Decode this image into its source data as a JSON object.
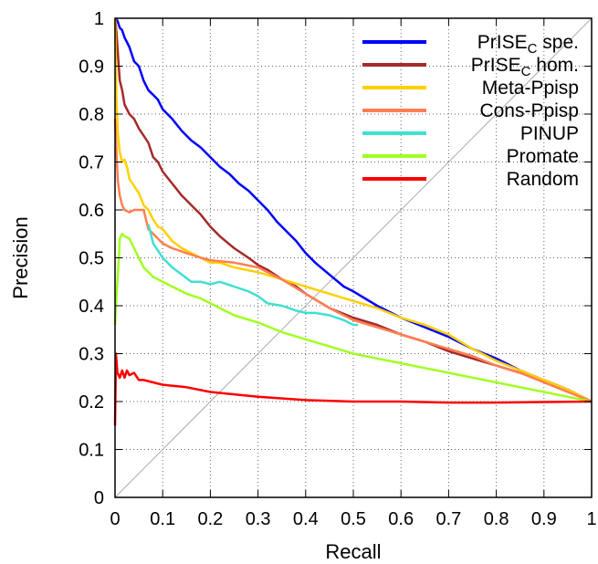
{
  "chart_data": {
    "type": "line",
    "xlabel": "Recall",
    "ylabel": "Precision",
    "xlim": [
      0,
      1
    ],
    "ylim": [
      0,
      1
    ],
    "xticks": [
      "0",
      "0.1",
      "0.2",
      "0.3",
      "0.4",
      "0.5",
      "0.6",
      "0.7",
      "0.8",
      "0.9",
      "1"
    ],
    "yticks": [
      "0",
      "0.1",
      "0.2",
      "0.3",
      "0.4",
      "0.5",
      "0.6",
      "0.7",
      "0.8",
      "0.9",
      "1"
    ],
    "grid": true,
    "legend_position": "top-right",
    "diagonal_reference": true,
    "series": [
      {
        "name": "PrISE",
        "name_sub": "C",
        "name_suffix": " spe.",
        "color": "#0000ff",
        "points": [
          [
            0,
            1.0
          ],
          [
            0.005,
            0.995
          ],
          [
            0.01,
            0.98
          ],
          [
            0.015,
            0.975
          ],
          [
            0.02,
            0.96
          ],
          [
            0.03,
            0.94
          ],
          [
            0.04,
            0.91
          ],
          [
            0.05,
            0.9
          ],
          [
            0.06,
            0.87
          ],
          [
            0.07,
            0.85
          ],
          [
            0.08,
            0.84
          ],
          [
            0.09,
            0.83
          ],
          [
            0.1,
            0.81
          ],
          [
            0.12,
            0.79
          ],
          [
            0.14,
            0.765
          ],
          [
            0.16,
            0.745
          ],
          [
            0.18,
            0.73
          ],
          [
            0.2,
            0.71
          ],
          [
            0.22,
            0.69
          ],
          [
            0.24,
            0.675
          ],
          [
            0.26,
            0.655
          ],
          [
            0.28,
            0.64
          ],
          [
            0.3,
            0.62
          ],
          [
            0.32,
            0.6
          ],
          [
            0.34,
            0.575
          ],
          [
            0.36,
            0.555
          ],
          [
            0.38,
            0.535
          ],
          [
            0.4,
            0.51
          ],
          [
            0.42,
            0.49
          ],
          [
            0.45,
            0.465
          ],
          [
            0.48,
            0.44
          ],
          [
            0.5,
            0.43
          ],
          [
            0.55,
            0.4
          ],
          [
            0.6,
            0.375
          ],
          [
            0.65,
            0.355
          ],
          [
            0.7,
            0.335
          ],
          [
            0.75,
            0.31
          ],
          [
            0.8,
            0.29
          ],
          [
            0.85,
            0.265
          ],
          [
            0.9,
            0.245
          ],
          [
            0.95,
            0.225
          ],
          [
            1.0,
            0.2
          ]
        ]
      },
      {
        "name": "PrISE",
        "name_sub": "C",
        "name_suffix": " hom.",
        "color": "#a52a2a",
        "points": [
          [
            0,
            1.0
          ],
          [
            0.003,
            0.97
          ],
          [
            0.007,
            0.91
          ],
          [
            0.01,
            0.87
          ],
          [
            0.015,
            0.85
          ],
          [
            0.02,
            0.82
          ],
          [
            0.03,
            0.8
          ],
          [
            0.04,
            0.79
          ],
          [
            0.05,
            0.77
          ],
          [
            0.06,
            0.755
          ],
          [
            0.07,
            0.74
          ],
          [
            0.08,
            0.71
          ],
          [
            0.09,
            0.7
          ],
          [
            0.1,
            0.68
          ],
          [
            0.12,
            0.655
          ],
          [
            0.14,
            0.63
          ],
          [
            0.16,
            0.61
          ],
          [
            0.18,
            0.59
          ],
          [
            0.2,
            0.565
          ],
          [
            0.22,
            0.545
          ],
          [
            0.25,
            0.52
          ],
          [
            0.28,
            0.5
          ],
          [
            0.3,
            0.485
          ],
          [
            0.32,
            0.475
          ],
          [
            0.35,
            0.455
          ],
          [
            0.38,
            0.44
          ],
          [
            0.4,
            0.425
          ],
          [
            0.45,
            0.395
          ],
          [
            0.5,
            0.375
          ],
          [
            0.55,
            0.36
          ],
          [
            0.6,
            0.34
          ],
          [
            0.65,
            0.325
          ],
          [
            0.7,
            0.305
          ],
          [
            0.75,
            0.29
          ],
          [
            0.8,
            0.275
          ],
          [
            0.85,
            0.26
          ],
          [
            0.9,
            0.245
          ],
          [
            0.95,
            0.225
          ],
          [
            1.0,
            0.2
          ]
        ]
      },
      {
        "name": "Meta-Ppisp",
        "color": "#ffd000",
        "points": [
          [
            0,
            1.0
          ],
          [
            0.003,
            0.83
          ],
          [
            0.006,
            0.76
          ],
          [
            0.01,
            0.72
          ],
          [
            0.015,
            0.7
          ],
          [
            0.02,
            0.705
          ],
          [
            0.025,
            0.69
          ],
          [
            0.03,
            0.665
          ],
          [
            0.04,
            0.65
          ],
          [
            0.05,
            0.635
          ],
          [
            0.06,
            0.61
          ],
          [
            0.07,
            0.6
          ],
          [
            0.08,
            0.58
          ],
          [
            0.09,
            0.565
          ],
          [
            0.1,
            0.56
          ],
          [
            0.12,
            0.535
          ],
          [
            0.14,
            0.52
          ],
          [
            0.16,
            0.51
          ],
          [
            0.18,
            0.5
          ],
          [
            0.2,
            0.49
          ],
          [
            0.22,
            0.49
          ],
          [
            0.25,
            0.48
          ],
          [
            0.3,
            0.47
          ],
          [
            0.35,
            0.455
          ],
          [
            0.4,
            0.44
          ],
          [
            0.45,
            0.425
          ],
          [
            0.5,
            0.41
          ],
          [
            0.55,
            0.395
          ],
          [
            0.6,
            0.375
          ],
          [
            0.65,
            0.36
          ],
          [
            0.7,
            0.34
          ],
          [
            0.75,
            0.31
          ],
          [
            0.8,
            0.285
          ],
          [
            0.85,
            0.265
          ],
          [
            0.9,
            0.245
          ],
          [
            0.95,
            0.225
          ],
          [
            1.0,
            0.2
          ]
        ]
      },
      {
        "name": "Cons-Ppisp",
        "color": "#ff7f50",
        "points": [
          [
            0,
            0.79
          ],
          [
            0.003,
            0.72
          ],
          [
            0.006,
            0.66
          ],
          [
            0.01,
            0.63
          ],
          [
            0.015,
            0.61
          ],
          [
            0.02,
            0.6
          ],
          [
            0.03,
            0.595
          ],
          [
            0.04,
            0.6
          ],
          [
            0.05,
            0.6
          ],
          [
            0.06,
            0.6
          ],
          [
            0.07,
            0.56
          ],
          [
            0.08,
            0.55
          ],
          [
            0.09,
            0.54
          ],
          [
            0.1,
            0.53
          ],
          [
            0.12,
            0.52
          ],
          [
            0.15,
            0.51
          ],
          [
            0.18,
            0.5
          ],
          [
            0.2,
            0.495
          ],
          [
            0.25,
            0.49
          ],
          [
            0.3,
            0.48
          ],
          [
            0.35,
            0.455
          ],
          [
            0.4,
            0.425
          ],
          [
            0.45,
            0.395
          ],
          [
            0.5,
            0.37
          ],
          [
            0.55,
            0.355
          ],
          [
            0.6,
            0.34
          ],
          [
            0.65,
            0.325
          ],
          [
            0.7,
            0.31
          ],
          [
            0.75,
            0.295
          ],
          [
            0.8,
            0.275
          ],
          [
            0.85,
            0.26
          ],
          [
            0.9,
            0.24
          ],
          [
            0.95,
            0.22
          ],
          [
            1.0,
            0.2
          ]
        ]
      },
      {
        "name": "PINUP",
        "color": "#40e0d0",
        "points": [
          [
            0.07,
            0.57
          ],
          [
            0.08,
            0.53
          ],
          [
            0.09,
            0.515
          ],
          [
            0.1,
            0.5
          ],
          [
            0.12,
            0.48
          ],
          [
            0.14,
            0.465
          ],
          [
            0.16,
            0.45
          ],
          [
            0.18,
            0.45
          ],
          [
            0.2,
            0.445
          ],
          [
            0.22,
            0.45
          ],
          [
            0.25,
            0.44
          ],
          [
            0.28,
            0.43
          ],
          [
            0.3,
            0.42
          ],
          [
            0.32,
            0.405
          ],
          [
            0.35,
            0.4
          ],
          [
            0.38,
            0.39
          ],
          [
            0.4,
            0.385
          ],
          [
            0.42,
            0.385
          ],
          [
            0.45,
            0.38
          ],
          [
            0.48,
            0.37
          ],
          [
            0.5,
            0.36
          ],
          [
            0.51,
            0.36
          ]
        ]
      },
      {
        "name": "Promate",
        "color": "#a0ff20",
        "points": [
          [
            0,
            0.36
          ],
          [
            0.002,
            0.4
          ],
          [
            0.005,
            0.45
          ],
          [
            0.008,
            0.5
          ],
          [
            0.01,
            0.54
          ],
          [
            0.015,
            0.55
          ],
          [
            0.02,
            0.545
          ],
          [
            0.03,
            0.54
          ],
          [
            0.04,
            0.52
          ],
          [
            0.05,
            0.5
          ],
          [
            0.06,
            0.48
          ],
          [
            0.08,
            0.46
          ],
          [
            0.1,
            0.45
          ],
          [
            0.12,
            0.44
          ],
          [
            0.15,
            0.425
          ],
          [
            0.18,
            0.415
          ],
          [
            0.2,
            0.405
          ],
          [
            0.25,
            0.38
          ],
          [
            0.3,
            0.365
          ],
          [
            0.35,
            0.345
          ],
          [
            0.4,
            0.33
          ],
          [
            0.45,
            0.315
          ],
          [
            0.5,
            0.3
          ],
          [
            0.55,
            0.29
          ],
          [
            0.6,
            0.28
          ],
          [
            0.65,
            0.27
          ],
          [
            0.7,
            0.26
          ],
          [
            0.75,
            0.25
          ],
          [
            0.8,
            0.24
          ],
          [
            0.85,
            0.23
          ],
          [
            0.9,
            0.22
          ],
          [
            0.95,
            0.21
          ],
          [
            1.0,
            0.2
          ]
        ]
      },
      {
        "name": "Random",
        "color": "#ff0000",
        "points": [
          [
            0,
            0.15
          ],
          [
            0.002,
            0.3
          ],
          [
            0.005,
            0.26
          ],
          [
            0.01,
            0.25
          ],
          [
            0.015,
            0.265
          ],
          [
            0.02,
            0.25
          ],
          [
            0.025,
            0.265
          ],
          [
            0.03,
            0.255
          ],
          [
            0.04,
            0.26
          ],
          [
            0.05,
            0.245
          ],
          [
            0.06,
            0.245
          ],
          [
            0.08,
            0.24
          ],
          [
            0.1,
            0.235
          ],
          [
            0.15,
            0.23
          ],
          [
            0.2,
            0.22
          ],
          [
            0.25,
            0.215
          ],
          [
            0.3,
            0.21
          ],
          [
            0.4,
            0.203
          ],
          [
            0.5,
            0.2
          ],
          [
            0.6,
            0.2
          ],
          [
            0.7,
            0.198
          ],
          [
            0.8,
            0.198
          ],
          [
            0.9,
            0.199
          ],
          [
            1.0,
            0.2
          ]
        ]
      }
    ]
  }
}
